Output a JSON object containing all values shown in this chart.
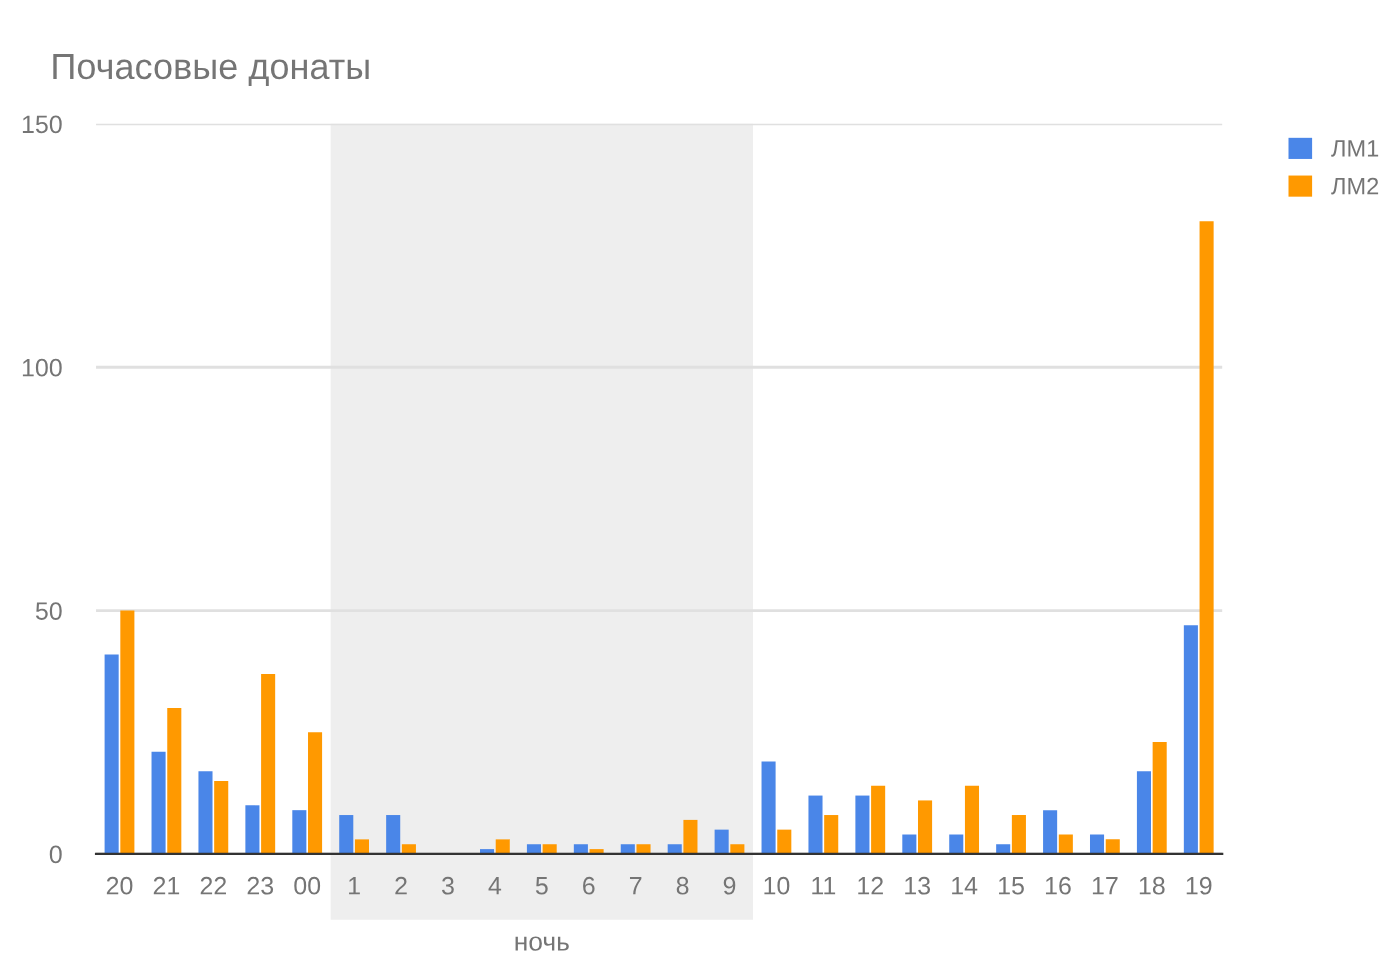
{
  "chart_data": {
    "type": "bar",
    "title": "Почасовые донаты",
    "categories": [
      "20",
      "21",
      "22",
      "23",
      "00",
      "1",
      "2",
      "3",
      "4",
      "5",
      "6",
      "7",
      "8",
      "9",
      "10",
      "11",
      "12",
      "13",
      "14",
      "15",
      "16",
      "17",
      "18",
      "19"
    ],
    "series": [
      {
        "name": "ЛМ1",
        "color": "#4a86e8",
        "values": [
          41,
          21,
          17,
          10,
          9,
          8,
          8,
          0,
          1,
          2,
          2,
          2,
          2,
          5,
          19,
          12,
          12,
          4,
          4,
          2,
          9,
          4,
          17,
          47
        ]
      },
      {
        "name": "ЛМ2",
        "color": "#ff9900",
        "values": [
          50,
          30,
          15,
          37,
          25,
          3,
          2,
          0,
          3,
          2,
          1,
          2,
          7,
          2,
          5,
          8,
          14,
          11,
          14,
          8,
          4,
          3,
          23,
          130
        ]
      }
    ],
    "ylim": [
      0,
      150
    ],
    "yticks": [
      0,
      50,
      100,
      150
    ],
    "grid": "y",
    "legend": "top right",
    "bands": [
      {
        "axis": "x",
        "from": "1",
        "to": "9",
        "label": "ночь",
        "color": "#eeeeee"
      }
    ]
  }
}
